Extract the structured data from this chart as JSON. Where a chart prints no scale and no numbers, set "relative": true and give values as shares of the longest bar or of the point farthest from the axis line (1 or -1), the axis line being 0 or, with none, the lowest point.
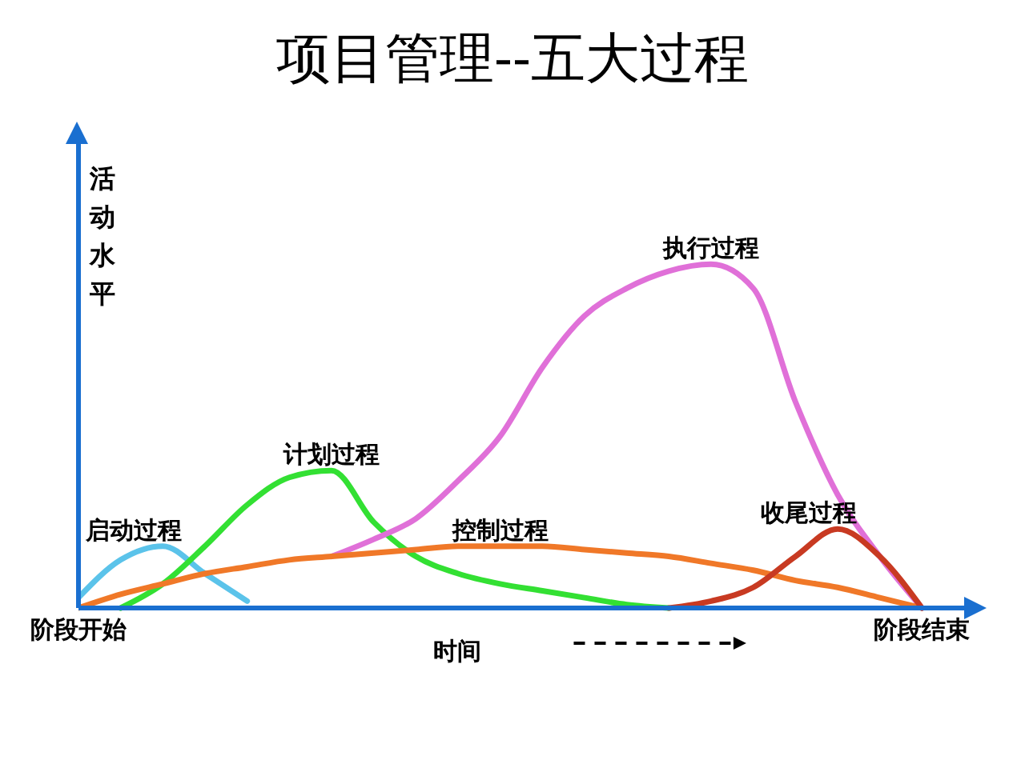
{
  "chart_data": {
    "type": "line",
    "title": "项目管理--五大过程",
    "xlabel": "时间",
    "ylabel": "活动水平",
    "relative": true,
    "categories": [
      "阶段开始",
      null,
      null,
      null,
      null,
      null,
      null,
      null,
      null,
      null,
      null,
      null,
      null,
      null,
      null,
      null,
      null,
      null,
      null,
      null,
      "阶段结束"
    ],
    "grid": false,
    "legend": false,
    "marker": "none",
    "line_style": "solid",
    "series": [
      {
        "name": "启动过程",
        "color": "#5bc3ea",
        "values": [
          0.03,
          0.14,
          0.18,
          0.1,
          0.02,
          null,
          null,
          null,
          null,
          null,
          null,
          null,
          null,
          null,
          null,
          null,
          null,
          null,
          null,
          null,
          null
        ]
      },
      {
        "name": "计划过程",
        "color": "#33e033",
        "values": [
          null,
          0,
          0.07,
          0.18,
          0.3,
          0.38,
          0.4,
          0.25,
          0.15,
          0.1,
          0.07,
          0.05,
          0.03,
          0.01,
          0,
          null,
          null,
          null,
          null,
          null,
          null
        ]
      },
      {
        "name": "执行过程",
        "color": "#e070d8",
        "values": [
          null,
          null,
          null,
          null,
          null,
          null,
          0.15,
          0.2,
          0.26,
          0.37,
          0.5,
          0.7,
          0.85,
          0.93,
          0.98,
          1,
          0.93,
          0.6,
          0.33,
          0.15,
          0
        ]
      },
      {
        "name": "控制过程",
        "color": "#f07828",
        "values": [
          0,
          0.04,
          0.07,
          0.1,
          0.12,
          0.14,
          0.15,
          0.16,
          0.17,
          0.18,
          0.18,
          0.18,
          0.17,
          0.16,
          0.15,
          0.13,
          0.11,
          0.08,
          0.06,
          0.03,
          0
        ]
      },
      {
        "name": "收尾过程",
        "color": "#c83a22",
        "values": [
          null,
          null,
          null,
          null,
          null,
          null,
          null,
          null,
          null,
          null,
          null,
          null,
          null,
          null,
          0,
          0.02,
          0.06,
          0.15,
          0.23,
          0.15,
          0
        ]
      }
    ]
  }
}
